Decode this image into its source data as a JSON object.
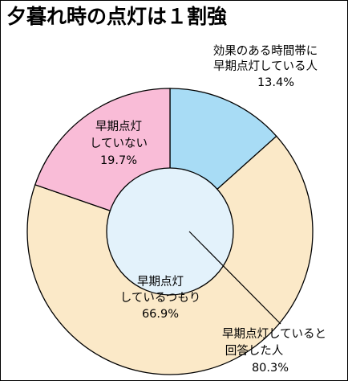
{
  "chart_data": {
    "type": "pie",
    "title": "夕暮れ時の点灯は１割強",
    "slices": [
      {
        "lines": [
          "効果のある時間帯に",
          "早期点灯している人"
        ],
        "value_label": "13.4%",
        "value": 13.4,
        "color": "#a8dcf5"
      },
      {
        "lines": [
          "早期点灯",
          "しているつもり"
        ],
        "value_label": "66.9%",
        "value": 66.9,
        "color": "#fbe9c8"
      },
      {
        "lines": [
          "早期点灯",
          "していない"
        ],
        "value_label": "19.7%",
        "value": 19.7,
        "color": "#f9bcd7"
      }
    ],
    "inner": {
      "lines": [
        "早期点灯していると",
        "回答した人"
      ],
      "value_label": "80.3%",
      "value": 80.3,
      "color": "#e3f2fb"
    }
  }
}
